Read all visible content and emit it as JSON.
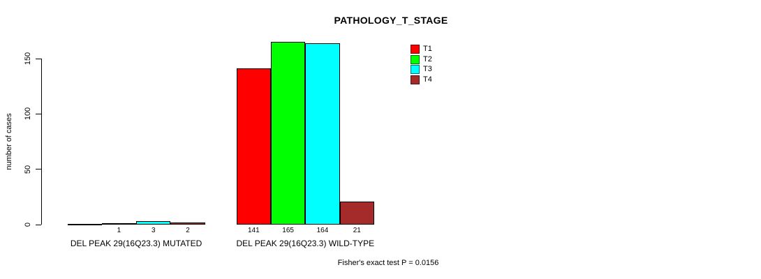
{
  "title": "PATHOLOGY_T_STAGE",
  "y_axis": {
    "label": "number of cases",
    "ticks": [
      "0",
      "50",
      "100",
      "150"
    ]
  },
  "legend": {
    "items": [
      {
        "label": "T1",
        "color": "#FF0000"
      },
      {
        "label": "T2",
        "color": "#00FF00"
      },
      {
        "label": "T3",
        "color": "#00FFFF"
      },
      {
        "label": "T4",
        "color": "#A52A2A"
      }
    ]
  },
  "footer": "Fisher's exact test P = 0.0156",
  "chart_data": {
    "type": "bar",
    "title": "PATHOLOGY_T_STAGE",
    "xlabel": "",
    "ylabel": "number of cases",
    "ylim": [
      0,
      165
    ],
    "axis_ticks": [
      0,
      50,
      100,
      150
    ],
    "grid": false,
    "legend_position": "inside-top-right",
    "categories": [
      "DEL PEAK 29(16Q23.3) MUTATED",
      "DEL PEAK 29(16Q23.3) WILD-TYPE"
    ],
    "series": [
      {
        "name": "T1",
        "color": "#FF0000",
        "values": [
          0,
          141
        ]
      },
      {
        "name": "T2",
        "color": "#00FF00",
        "values": [
          1,
          165
        ]
      },
      {
        "name": "T3",
        "color": "#00FFFF",
        "values": [
          3,
          164
        ]
      },
      {
        "name": "T4",
        "color": "#A52A2A",
        "values": [
          2,
          21
        ]
      }
    ],
    "bar_labels": [
      [
        "",
        "1",
        "3",
        "2"
      ],
      [
        "141",
        "165",
        "164",
        "21"
      ]
    ],
    "annotation": "Fisher's exact test P = 0.0156"
  }
}
